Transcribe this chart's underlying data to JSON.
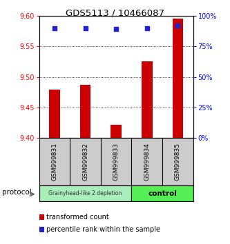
{
  "title": "GDS5113 / 10466087",
  "samples": [
    "GSM999831",
    "GSM999832",
    "GSM999833",
    "GSM999834",
    "GSM999835"
  ],
  "transformed_counts": [
    9.479,
    9.487,
    9.421,
    9.525,
    9.595
  ],
  "percentile_ranks": [
    90,
    90,
    89,
    90,
    92
  ],
  "ylim_left": [
    9.4,
    9.6
  ],
  "ylim_right": [
    0,
    100
  ],
  "yticks_left": [
    9.4,
    9.45,
    9.5,
    9.55,
    9.6
  ],
  "yticks_right": [
    0,
    25,
    50,
    75,
    100
  ],
  "bar_color": "#cc0000",
  "dot_color": "#2222cc",
  "group1_color": "#aaeebb",
  "group2_color": "#55ee55",
  "label_bg_color": "#cccccc",
  "group1_label": "Grainyhead-like 2 depletion",
  "group2_label": "control",
  "group1_indices": [
    0,
    1,
    2
  ],
  "group2_indices": [
    3,
    4
  ],
  "protocol_label": "protocol",
  "legend_bar_label": "transformed count",
  "legend_dot_label": "percentile rank within the sample",
  "background_color": "#ffffff"
}
